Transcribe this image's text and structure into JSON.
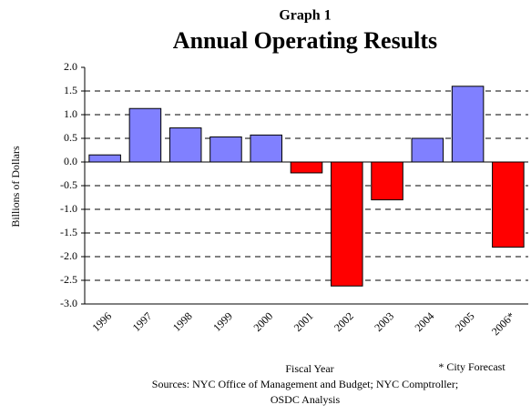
{
  "chart_data": {
    "type": "bar",
    "title": "Graph 1",
    "subtitle": "Annual Operating Results",
    "y_label": "Billions of Dollars",
    "x_label": "Fiscal Year",
    "annotation": "* City Forecast",
    "source": [
      "Sources: NYC Office of Management and Budget; NYC Comptroller;",
      "OSDC Analysis"
    ],
    "categories": [
      "1996",
      "1997",
      "1998",
      "1999",
      "2000",
      "2001",
      "2002",
      "2003",
      "2004",
      "2005",
      "2006*"
    ],
    "values": [
      0.15,
      1.13,
      0.72,
      0.53,
      0.57,
      -0.23,
      -2.62,
      -0.8,
      0.5,
      1.6,
      -1.8
    ],
    "colors": [
      "#8080ff",
      "#8080ff",
      "#8080ff",
      "#8080ff",
      "#8080ff",
      "#ff0000",
      "#ff0000",
      "#ff0000",
      "#8080ff",
      "#8080ff",
      "#ff0000"
    ],
    "ylim": [
      -3,
      2
    ],
    "yticks": [
      {
        "value": 2,
        "label": "2.0"
      },
      1.5,
      {
        "value": 1,
        "label": "1.0"
      },
      0.5,
      {
        "value": 0,
        "label": "0.0"
      },
      -0.5,
      {
        "value": -1,
        "label": "-1.0"
      },
      -1.5,
      {
        "value": -2,
        "label": "-2.0"
      },
      -2.5,
      {
        "value": -3,
        "label": "-3.0"
      }
    ],
    "grid": true
  }
}
